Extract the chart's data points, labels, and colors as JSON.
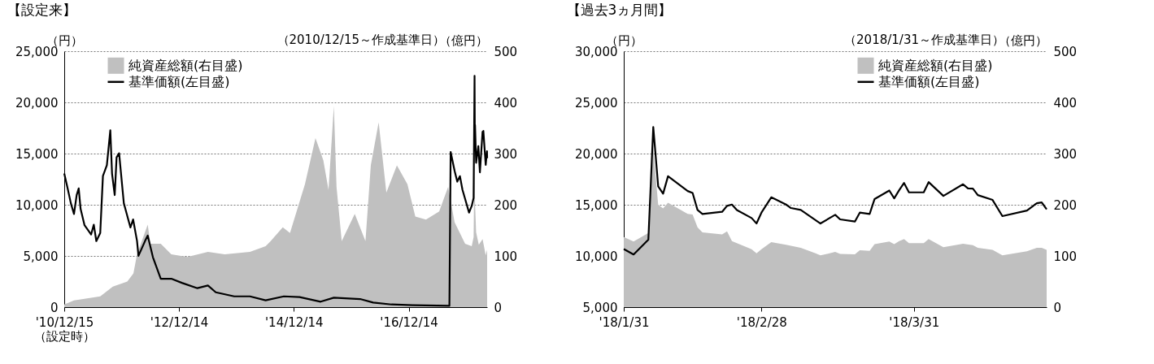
{
  "chart_data": [
    {
      "type": "line",
      "title": "【設定来】",
      "subtitle": "（2010/12/15～作成基準日）",
      "ylabel": "（円）",
      "y2label": "（億円）",
      "xlim": [
        "2010-12-15",
        "2018-04-27"
      ],
      "xticks": [
        {
          "value": "2010-12-15",
          "label": "'10/12/15\n（設定時）"
        },
        {
          "value": "2012-12-14",
          "label": "'12/12/14"
        },
        {
          "value": "2014-12-14",
          "label": "'14/12/14"
        },
        {
          "value": "2016-12-14",
          "label": "'16/12/14"
        }
      ],
      "ylim": [
        0,
        25000
      ],
      "yticks": [
        0,
        {
          "value": 5000,
          "label": "5,000"
        },
        {
          "value": 10000,
          "label": "10,000"
        },
        {
          "value": 15000,
          "label": "15,000"
        },
        {
          "value": 20000,
          "label": "20,000"
        },
        {
          "value": 25000,
          "label": "25,000"
        }
      ],
      "y2lim": [
        0,
        500
      ],
      "y2ticks": [
        0,
        100,
        200,
        300,
        400,
        500
      ],
      "grid": "y",
      "legend": "top left",
      "series": [
        {
          "name": "純資産総額(右目盛)",
          "type": "area",
          "axis": "y2",
          "color": "#c0c0c0",
          "x": [
            "2010-12-15",
            "2011-02-15",
            "2011-08-01",
            "2011-10-20",
            "2012-01-20",
            "2012-02-28",
            "2012-03-22",
            "2012-05-29",
            "2012-06-15",
            "2012-08-20",
            "2012-10-26",
            "2013-02-05",
            "2013-06-16",
            "2013-10-01",
            "2014-03-10",
            "2014-06-18",
            "2014-07-20",
            "2014-10-05",
            "2014-11-20",
            "2015-02-23",
            "2015-05-01",
            "2015-06-20",
            "2015-07-23",
            "2015-08-26",
            "2015-09-12",
            "2015-10-15",
            "2016-01-06",
            "2016-03-14",
            "2016-04-17",
            "2016-06-06",
            "2016-07-25",
            "2016-09-30",
            "2016-12-06",
            "2017-01-25",
            "2017-04-03",
            "2017-06-26",
            "2017-08-22",
            "2017-10-02",
            "2017-12-08",
            "2018-01-19",
            "2018-01-31",
            "2018-02-06",
            "2018-02-09",
            "2018-02-16",
            "2018-03-05",
            "2018-03-29",
            "2018-04-18",
            "2018-04-27"
          ],
          "values": [
            5,
            13,
            21,
            40,
            50,
            66,
            103,
            161,
            124,
            124,
            103,
            98,
            108,
            103,
            108,
            119,
            129,
            156,
            145,
            240,
            330,
            287,
            229,
            393,
            235,
            129,
            182,
            129,
            277,
            361,
            224,
            277,
            240,
            177,
            171,
            187,
            235,
            166,
            124,
            119,
            137,
            309,
            204,
            146,
            122,
            133,
            101,
            112
          ]
        },
        {
          "name": "基準価額(左目盛)",
          "type": "line",
          "axis": "y",
          "color": "#000000",
          "x": [
            "2010-12-15",
            "2011-01-04",
            "2011-01-26",
            "2011-02-15",
            "2011-03-04",
            "2011-03-17",
            "2011-03-29",
            "2011-04-23",
            "2011-06-04",
            "2011-06-21",
            "2011-07-07",
            "2011-08-01",
            "2011-08-18",
            "2011-09-12",
            "2011-10-04",
            "2011-10-15",
            "2011-11-01",
            "2011-11-13",
            "2011-11-29",
            "2011-12-29",
            "2012-02-09",
            "2012-02-26",
            "2012-03-22",
            "2012-03-31",
            "2012-05-12",
            "2012-05-29",
            "2012-07-01",
            "2012-08-20",
            "2012-10-26",
            "2013-01-01",
            "2013-04-10",
            "2013-06-16",
            "2013-08-05",
            "2013-11-30",
            "2014-03-10",
            "2014-06-18",
            "2014-10-12",
            "2015-01-20",
            "2015-06-03",
            "2015-08-26",
            "2016-02-09",
            "2016-05-02",
            "2016-08-27",
            "2017-01-08",
            "2017-08-30",
            "2017-09-07",
            "2017-10-02",
            "2017-10-19",
            "2017-11-05",
            "2017-11-21",
            "2018-01-02",
            "2018-01-19",
            "2018-01-31",
            "2018-02-06",
            "2018-02-08",
            "2018-02-09",
            "2018-02-16",
            "2018-03-02",
            "2018-03-12",
            "2018-03-29",
            "2018-04-03",
            "2018-04-18",
            "2018-04-26",
            "2018-04-27"
          ],
          "values": [
            13050,
            11700,
            10150,
            9100,
            10940,
            11600,
            9600,
            8000,
            7100,
            8050,
            6450,
            7250,
            12800,
            13850,
            17270,
            13050,
            10950,
            14630,
            15030,
            10150,
            7780,
            8570,
            6460,
            5010,
            6460,
            6990,
            4880,
            2770,
            2770,
            2370,
            1850,
            2110,
            1450,
            1050,
            1050,
            660,
            1050,
            980,
            530,
            920,
            790,
            450,
            260,
            190,
            130,
            15160,
            13320,
            12260,
            12790,
            11470,
            9230,
            9890,
            10670,
            22590,
            16080,
            17790,
            14100,
            15730,
            13170,
            17130,
            17210,
            13890,
            15230,
            14550
          ]
        }
      ]
    },
    {
      "type": "line",
      "title": "【過去3ヵ月間】",
      "subtitle": "（2018/1/31～作成基準日）",
      "ylabel": "（円）",
      "y2label": "（億円）",
      "xlim": [
        "2018-01-31",
        "2018-04-27"
      ],
      "xticks": [
        {
          "value": "2018-01-31",
          "label": "'18/1/31"
        },
        {
          "value": "2018-02-28",
          "label": "'18/2/28"
        },
        {
          "value": "2018-03-31",
          "label": "'18/3/31"
        }
      ],
      "ylim": [
        5000,
        30000
      ],
      "yticks": [
        {
          "value": 5000,
          "label": "5,000"
        },
        {
          "value": 10000,
          "label": "10,000"
        },
        {
          "value": 15000,
          "label": "15,000"
        },
        {
          "value": 20000,
          "label": "20,000"
        },
        {
          "value": 25000,
          "label": "25,000"
        },
        {
          "value": 30000,
          "label": "30,000"
        }
      ],
      "y2lim": [
        0,
        500
      ],
      "y2ticks": [
        0,
        100,
        200,
        300,
        400,
        500
      ],
      "grid": "y",
      "legend": "top right",
      "series": [
        {
          "name": "純資産総額(右目盛)",
          "type": "area",
          "axis": "y2",
          "color": "#c0c0c0",
          "x": [
            "2018-01-31",
            "2018-02-02",
            "2018-02-05",
            "2018-02-06",
            "2018-02-07",
            "2018-02-08",
            "2018-02-09",
            "2018-02-13",
            "2018-02-14",
            "2018-02-15",
            "2018-02-16",
            "2018-02-20",
            "2018-02-21",
            "2018-02-22",
            "2018-02-26",
            "2018-02-27",
            "2018-02-28",
            "2018-03-02",
            "2018-03-05",
            "2018-03-08",
            "2018-03-11",
            "2018-03-12",
            "2018-03-15",
            "2018-03-16",
            "2018-03-19",
            "2018-03-20",
            "2018-03-22",
            "2018-03-23",
            "2018-03-26",
            "2018-03-27",
            "2018-03-28",
            "2018-03-29",
            "2018-03-30",
            "2018-04-02",
            "2018-04-03",
            "2018-04-06",
            "2018-04-10",
            "2018-04-12",
            "2018-04-13",
            "2018-04-16",
            "2018-04-18",
            "2018-04-23",
            "2018-04-25",
            "2018-04-26",
            "2018-04-27"
          ],
          "values": [
            137,
            128,
            145,
            309,
            200,
            193,
            204,
            182,
            181,
            156,
            146,
            142,
            148,
            129,
            113,
            105,
            113,
            127,
            122,
            116,
            105,
            101,
            108,
            104,
            103,
            111,
            110,
            123,
            128,
            123,
            129,
            133,
            125,
            125,
            133,
            117,
            124,
            121,
            116,
            112,
            101,
            109,
            116,
            116,
            112
          ]
        },
        {
          "name": "基準価額(左目盛)",
          "type": "line",
          "axis": "y",
          "color": "#000000",
          "x": [
            "2018-01-31",
            "2018-02-02",
            "2018-02-05",
            "2018-02-06",
            "2018-02-07",
            "2018-02-08",
            "2018-02-09",
            "2018-02-13",
            "2018-02-14",
            "2018-02-15",
            "2018-02-16",
            "2018-02-20",
            "2018-02-21",
            "2018-02-22",
            "2018-02-23",
            "2018-02-26",
            "2018-02-27",
            "2018-02-28",
            "2018-03-02",
            "2018-03-05",
            "2018-03-06",
            "2018-03-08",
            "2018-03-12",
            "2018-03-15",
            "2018-03-16",
            "2018-03-19",
            "2018-03-20",
            "2018-03-22",
            "2018-03-23",
            "2018-03-26",
            "2018-03-27",
            "2018-03-28",
            "2018-03-29",
            "2018-03-30",
            "2018-04-02",
            "2018-04-03",
            "2018-04-06",
            "2018-04-10",
            "2018-04-11",
            "2018-04-12",
            "2018-04-13",
            "2018-04-16",
            "2018-04-18",
            "2018-04-23",
            "2018-04-25",
            "2018-04-26",
            "2018-04-27"
          ],
          "values": [
            10670,
            10140,
            11590,
            22590,
            16790,
            16080,
            17790,
            16340,
            16150,
            14490,
            14100,
            14310,
            14890,
            15020,
            14490,
            13700,
            13170,
            14230,
            15730,
            15020,
            14680,
            14490,
            13170,
            14020,
            13570,
            13360,
            14230,
            14100,
            15550,
            16390,
            15630,
            16420,
            17130,
            16210,
            16210,
            17210,
            15860,
            17000,
            16600,
            16580,
            15940,
            15470,
            13890,
            14440,
            15150,
            15230,
            14550
          ]
        }
      ]
    }
  ]
}
